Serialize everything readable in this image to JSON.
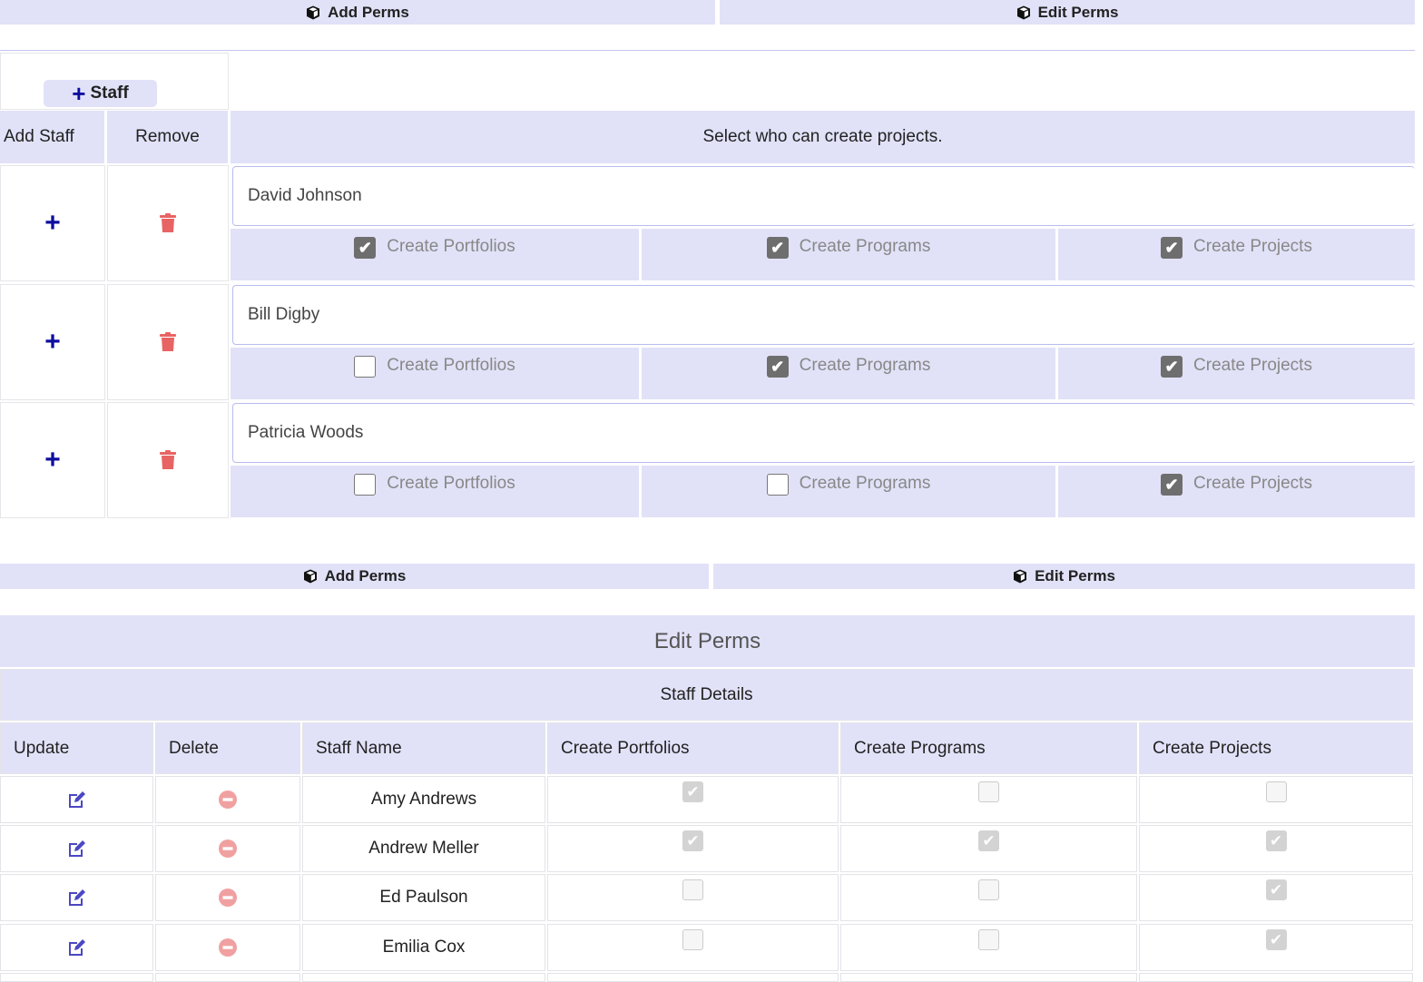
{
  "top_bar": {
    "add_perms": "Add Perms",
    "edit_perms": "Edit Perms"
  },
  "add_section": {
    "add_staff_button": "Staff",
    "headers": {
      "add_staff": "Add Staff",
      "remove": "Remove",
      "instruction": "Select who can create projects."
    },
    "permission_labels": [
      "Create Portfolios",
      "Create Programs",
      "Create Projects"
    ],
    "rows": [
      {
        "name": "David Johnson",
        "perms": [
          true,
          true,
          true
        ]
      },
      {
        "name": "Bill Digby",
        "perms": [
          false,
          true,
          true
        ]
      },
      {
        "name": "Patricia Woods",
        "perms": [
          false,
          false,
          true
        ]
      }
    ]
  },
  "bottom_bar": {
    "add_perms": "Add Perms",
    "edit_perms": "Edit Perms"
  },
  "edit_section": {
    "title": "Edit Perms",
    "table_caption": "Staff Details",
    "columns": [
      "Update",
      "Delete",
      "Staff Name",
      "Create Portfolios",
      "Create Programs",
      "Create Projects"
    ],
    "rows": [
      {
        "name": "Amy Andrews",
        "perms": [
          true,
          false,
          false
        ]
      },
      {
        "name": "Andrew Meller",
        "perms": [
          true,
          true,
          true
        ]
      },
      {
        "name": "Ed Paulson",
        "perms": [
          false,
          false,
          true
        ]
      },
      {
        "name": "Emilia Cox",
        "perms": [
          false,
          false,
          true
        ]
      }
    ]
  },
  "colors": {
    "accent_bg": "#e1e2f8",
    "plus": "#0d0d9e",
    "trash": "#e86464",
    "edit_icon": "#4b47c4",
    "delete_icon": "#f0a0a0"
  }
}
